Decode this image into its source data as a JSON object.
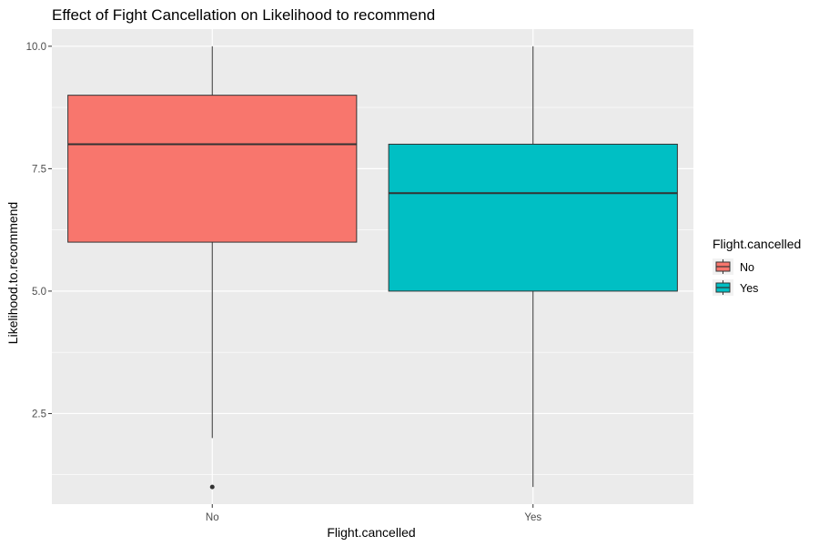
{
  "chart_data": {
    "type": "boxplot",
    "title": "Effect of Fight Cancellation on Likelihood to recommend",
    "xlabel": "Flight.cancelled",
    "ylabel": "Likelihood.to.recommend",
    "categories": [
      "No",
      "Yes"
    ],
    "ylim": [
      0.65,
      10.35
    ],
    "yticks": [
      "2.5",
      "5.0",
      "7.5",
      "10.0"
    ],
    "grid": true,
    "legend": {
      "title": "Flight.cancelled",
      "placement": "right",
      "entries": [
        "No",
        "Yes"
      ]
    },
    "boxes": [
      {
        "name": "No",
        "whisker_low": 2,
        "q1": 6,
        "median": 8,
        "q3": 9,
        "whisker_high": 10,
        "outliers": [
          1
        ],
        "color": "#F8766D"
      },
      {
        "name": "Yes",
        "whisker_low": 1,
        "q1": 5,
        "median": 7,
        "q3": 8,
        "whisker_high": 10,
        "outliers": [],
        "color": "#00BFC4"
      }
    ],
    "colors": {
      "panel": "#EBEBEB",
      "grid": "#FFFFFF",
      "outline": "#333333"
    }
  }
}
